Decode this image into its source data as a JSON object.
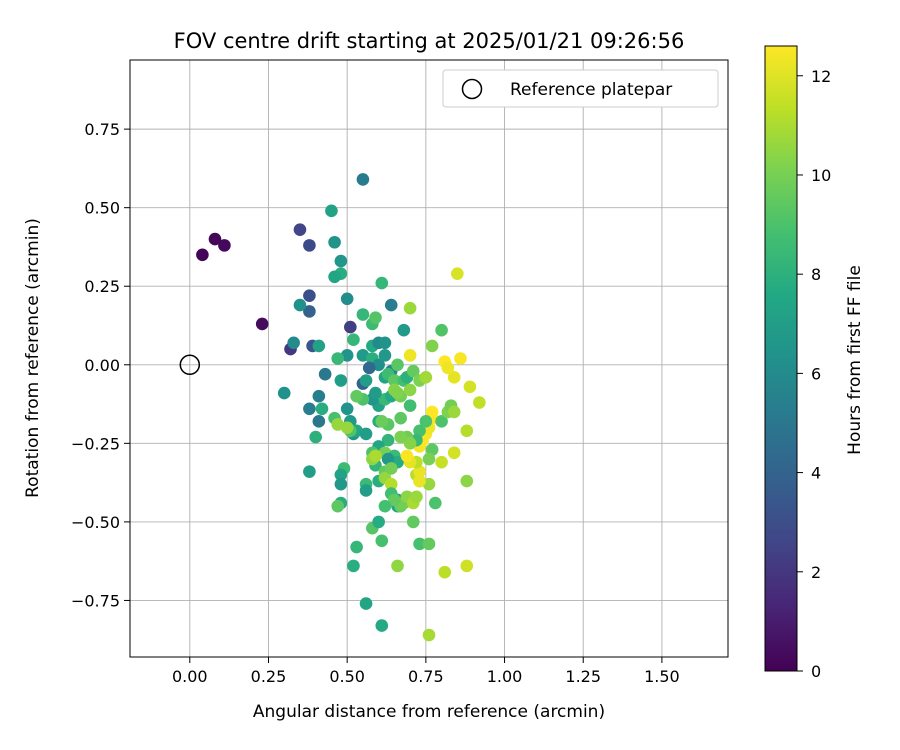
{
  "chart_data": {
    "type": "scatter",
    "title": "FOV centre drift starting at 2025/01/21 09:26:56",
    "xlabel": "Angular distance from reference (arcmin)",
    "ylabel": "Rotation from reference (arcmin)",
    "xlim": [
      -0.19,
      1.71
    ],
    "ylim": [
      -0.93,
      0.97
    ],
    "xticks": [
      0.0,
      0.25,
      0.5,
      0.75,
      1.0,
      1.25,
      1.5
    ],
    "xtick_labels": [
      "0.00",
      "0.25",
      "0.50",
      "0.75",
      "1.00",
      "1.25",
      "1.50"
    ],
    "yticks": [
      -0.75,
      -0.5,
      -0.25,
      0.0,
      0.25,
      0.5,
      0.75
    ],
    "ytick_labels": [
      "−0.75",
      "−0.50",
      "−0.25",
      "0.00",
      "0.25",
      "0.50",
      "0.75"
    ],
    "grid": true,
    "legend": {
      "position": "top-right",
      "entries": [
        "Reference platepar"
      ]
    },
    "reference_point": {
      "x": 0.0,
      "y": 0.0,
      "marker": "open-circle"
    },
    "colorbar": {
      "label": "Hours from first FF file",
      "colormap": "viridis",
      "range": [
        0,
        12.6
      ],
      "ticks": [
        0,
        2,
        4,
        6,
        8,
        10,
        12
      ],
      "tick_labels": [
        "0",
        "2",
        "4",
        "6",
        "8",
        "10",
        "12"
      ]
    },
    "points": [
      [
        0.04,
        0.35,
        0.1
      ],
      [
        0.08,
        0.4,
        0.2
      ],
      [
        0.11,
        0.38,
        0.3
      ],
      [
        0.23,
        0.13,
        0.4
      ],
      [
        0.32,
        0.05,
        2.0
      ],
      [
        0.35,
        0.43,
        2.6
      ],
      [
        0.38,
        0.38,
        2.8
      ],
      [
        0.38,
        0.22,
        3.1
      ],
      [
        0.38,
        0.17,
        3.9
      ],
      [
        0.51,
        0.12,
        2.3
      ],
      [
        0.39,
        0.06,
        3.3
      ],
      [
        0.55,
        0.59,
        5.2
      ],
      [
        0.45,
        0.49,
        7.3
      ],
      [
        0.46,
        0.39,
        6.4
      ],
      [
        0.48,
        0.33,
        6.6
      ],
      [
        0.48,
        0.29,
        7.8
      ],
      [
        0.46,
        0.28,
        7.4
      ],
      [
        0.35,
        0.19,
        6.3
      ],
      [
        0.33,
        0.07,
        6.0
      ],
      [
        0.41,
        0.06,
        7.2
      ],
      [
        0.5,
        0.21,
        6.1
      ],
      [
        0.55,
        0.16,
        8.3
      ],
      [
        0.58,
        0.13,
        8.6
      ],
      [
        0.59,
        0.15,
        9.2
      ],
      [
        0.61,
        0.26,
        8.3
      ],
      [
        0.64,
        0.19,
        5.3
      ],
      [
        0.68,
        0.11,
        6.8
      ],
      [
        0.52,
        0.08,
        8.3
      ],
      [
        0.5,
        0.03,
        6.5
      ],
      [
        0.47,
        0.02,
        8.4
      ],
      [
        0.55,
        0.03,
        6.8
      ],
      [
        0.58,
        0.06,
        7.6
      ],
      [
        0.6,
        0.07,
        5.9
      ],
      [
        0.62,
        0.07,
        6.4
      ],
      [
        0.58,
        0.02,
        7.9
      ],
      [
        0.6,
        0.0,
        6.2
      ],
      [
        0.62,
        0.03,
        6.7
      ],
      [
        0.64,
        -0.02,
        5.8
      ],
      [
        0.62,
        -0.04,
        7.3
      ],
      [
        0.57,
        -0.01,
        4.3
      ],
      [
        0.55,
        -0.06,
        4.0
      ],
      [
        0.56,
        -0.05,
        7.0
      ],
      [
        0.48,
        -0.05,
        7.0
      ],
      [
        0.43,
        -0.03,
        5.0
      ],
      [
        0.41,
        -0.1,
        5.4
      ],
      [
        0.38,
        -0.14,
        5.3
      ],
      [
        0.41,
        -0.18,
        5.0
      ],
      [
        0.42,
        -0.14,
        7.8
      ],
      [
        0.4,
        -0.23,
        8.0
      ],
      [
        0.38,
        -0.34,
        7.0
      ],
      [
        0.3,
        -0.09,
        6.3
      ],
      [
        0.5,
        -0.14,
        6.5
      ],
      [
        0.51,
        -0.18,
        6.8
      ],
      [
        0.52,
        -0.22,
        6.6
      ],
      [
        0.53,
        -0.21,
        7.5
      ],
      [
        0.56,
        -0.22,
        7.0
      ],
      [
        0.6,
        -0.18,
        7.8
      ],
      [
        0.6,
        -0.13,
        7.2
      ],
      [
        0.62,
        -0.11,
        8.4
      ],
      [
        0.64,
        -0.1,
        7.6
      ],
      [
        0.58,
        -0.11,
        6.5
      ],
      [
        0.59,
        -0.09,
        6.9
      ],
      [
        0.63,
        -0.03,
        8.6
      ],
      [
        0.65,
        -0.05,
        9.4
      ],
      [
        0.66,
        0.0,
        9.3
      ],
      [
        0.65,
        -0.08,
        10.3
      ],
      [
        0.68,
        -0.05,
        8.8
      ],
      [
        0.69,
        -0.04,
        8.0
      ],
      [
        0.71,
        -0.02,
        9.6
      ],
      [
        0.73,
        -0.05,
        10.1
      ],
      [
        0.75,
        -0.04,
        10.8
      ],
      [
        0.7,
        0.03,
        12.3
      ],
      [
        0.67,
        -0.1,
        9.9
      ],
      [
        0.66,
        -0.09,
        10.2
      ],
      [
        0.7,
        -0.08,
        10.4
      ],
      [
        0.67,
        -0.17,
        9.4
      ],
      [
        0.7,
        -0.13,
        8.7
      ],
      [
        0.63,
        -0.19,
        9.3
      ],
      [
        0.61,
        -0.18,
        9.7
      ],
      [
        0.63,
        -0.24,
        8.2
      ],
      [
        0.6,
        -0.26,
        7.4
      ],
      [
        0.62,
        -0.28,
        10.0
      ],
      [
        0.65,
        -0.29,
        8.5
      ],
      [
        0.66,
        -0.31,
        7.7
      ],
      [
        0.63,
        -0.3,
        6.7
      ],
      [
        0.58,
        -0.28,
        9.0
      ],
      [
        0.59,
        -0.32,
        8.2
      ],
      [
        0.6,
        -0.37,
        7.9
      ],
      [
        0.62,
        -0.34,
        9.5
      ],
      [
        0.62,
        -0.36,
        10.6
      ],
      [
        0.64,
        -0.38,
        11.2
      ],
      [
        0.64,
        -0.41,
        8.7
      ],
      [
        0.56,
        -0.38,
        8.5
      ],
      [
        0.56,
        -0.4,
        7.0
      ],
      [
        0.49,
        -0.33,
        8.6
      ],
      [
        0.48,
        -0.35,
        7.3
      ],
      [
        0.48,
        -0.38,
        6.7
      ],
      [
        0.48,
        -0.44,
        7.8
      ],
      [
        0.47,
        -0.45,
        9.4
      ],
      [
        0.46,
        -0.17,
        8.9
      ],
      [
        0.51,
        -0.21,
        9.1
      ],
      [
        0.5,
        -0.2,
        10.6
      ],
      [
        0.55,
        -0.11,
        9.0
      ],
      [
        0.53,
        -0.1,
        9.5
      ],
      [
        0.47,
        -0.19,
        10.6
      ],
      [
        0.58,
        -0.3,
        10.4
      ],
      [
        0.59,
        -0.29,
        11.0
      ],
      [
        0.66,
        -0.43,
        6.8
      ],
      [
        0.66,
        -0.45,
        7.4
      ],
      [
        0.67,
        -0.45,
        9.7
      ],
      [
        0.68,
        -0.44,
        9.9
      ],
      [
        0.69,
        -0.42,
        10.4
      ],
      [
        0.71,
        -0.44,
        11.0
      ],
      [
        0.72,
        -0.42,
        10.7
      ],
      [
        0.73,
        -0.37,
        10.8
      ],
      [
        0.72,
        -0.35,
        11.2
      ],
      [
        0.73,
        -0.34,
        12.2
      ],
      [
        0.72,
        -0.31,
        11.3
      ],
      [
        0.7,
        -0.31,
        12.1
      ],
      [
        0.69,
        -0.29,
        12.5
      ],
      [
        0.73,
        -0.26,
        12.4
      ],
      [
        0.74,
        -0.24,
        12.6
      ],
      [
        0.75,
        -0.22,
        12.4
      ],
      [
        0.76,
        -0.2,
        12.3
      ],
      [
        0.77,
        -0.17,
        12.5
      ],
      [
        0.77,
        -0.15,
        12.6
      ],
      [
        0.75,
        -0.18,
        9.0
      ],
      [
        0.73,
        -0.21,
        8.9
      ],
      [
        0.72,
        -0.24,
        8.4
      ],
      [
        0.69,
        -0.23,
        9.8
      ],
      [
        0.7,
        -0.25,
        10.3
      ],
      [
        0.77,
        -0.27,
        9.4
      ],
      [
        0.76,
        -0.3,
        10.0
      ],
      [
        0.78,
        -0.44,
        9.0
      ],
      [
        0.76,
        -0.38,
        10.6
      ],
      [
        0.8,
        -0.31,
        11.5
      ],
      [
        0.84,
        -0.28,
        11.8
      ],
      [
        0.8,
        -0.18,
        9.0
      ],
      [
        0.82,
        -0.15,
        10.2
      ],
      [
        0.83,
        -0.13,
        9.9
      ],
      [
        0.84,
        -0.15,
        10.7
      ],
      [
        0.88,
        -0.21,
        11.2
      ],
      [
        0.89,
        -0.07,
        11.8
      ],
      [
        0.92,
        -0.12,
        11.4
      ],
      [
        0.84,
        -0.04,
        12.1
      ],
      [
        0.86,
        0.02,
        12.5
      ],
      [
        0.81,
        0.01,
        12.6
      ],
      [
        0.82,
        -0.01,
        12.3
      ],
      [
        0.77,
        0.06,
        10.2
      ],
      [
        0.8,
        0.11,
        9.1
      ],
      [
        0.7,
        0.18,
        10.7
      ],
      [
        0.85,
        0.29,
        11.9
      ],
      [
        0.88,
        -0.37,
        10.4
      ],
      [
        0.71,
        -0.5,
        9.5
      ],
      [
        0.73,
        -0.57,
        8.9
      ],
      [
        0.76,
        -0.57,
        9.6
      ],
      [
        0.66,
        -0.64,
        10.5
      ],
      [
        0.81,
        -0.66,
        11.3
      ],
      [
        0.88,
        -0.64,
        11.7
      ],
      [
        0.76,
        -0.86,
        10.9
      ],
      [
        0.61,
        -0.83,
        7.6
      ],
      [
        0.56,
        -0.76,
        7.4
      ],
      [
        0.52,
        -0.64,
        7.9
      ],
      [
        0.53,
        -0.58,
        8.3
      ],
      [
        0.61,
        -0.56,
        8.9
      ],
      [
        0.58,
        -0.52,
        9.2
      ],
      [
        0.6,
        -0.5,
        7.7
      ],
      [
        0.73,
        -0.37,
        12.2
      ],
      [
        0.65,
        -0.43,
        9.6
      ],
      [
        0.62,
        -0.45,
        8.8
      ],
      [
        0.64,
        -0.33,
        9.9
      ],
      [
        0.67,
        -0.23,
        10.1
      ]
    ]
  }
}
